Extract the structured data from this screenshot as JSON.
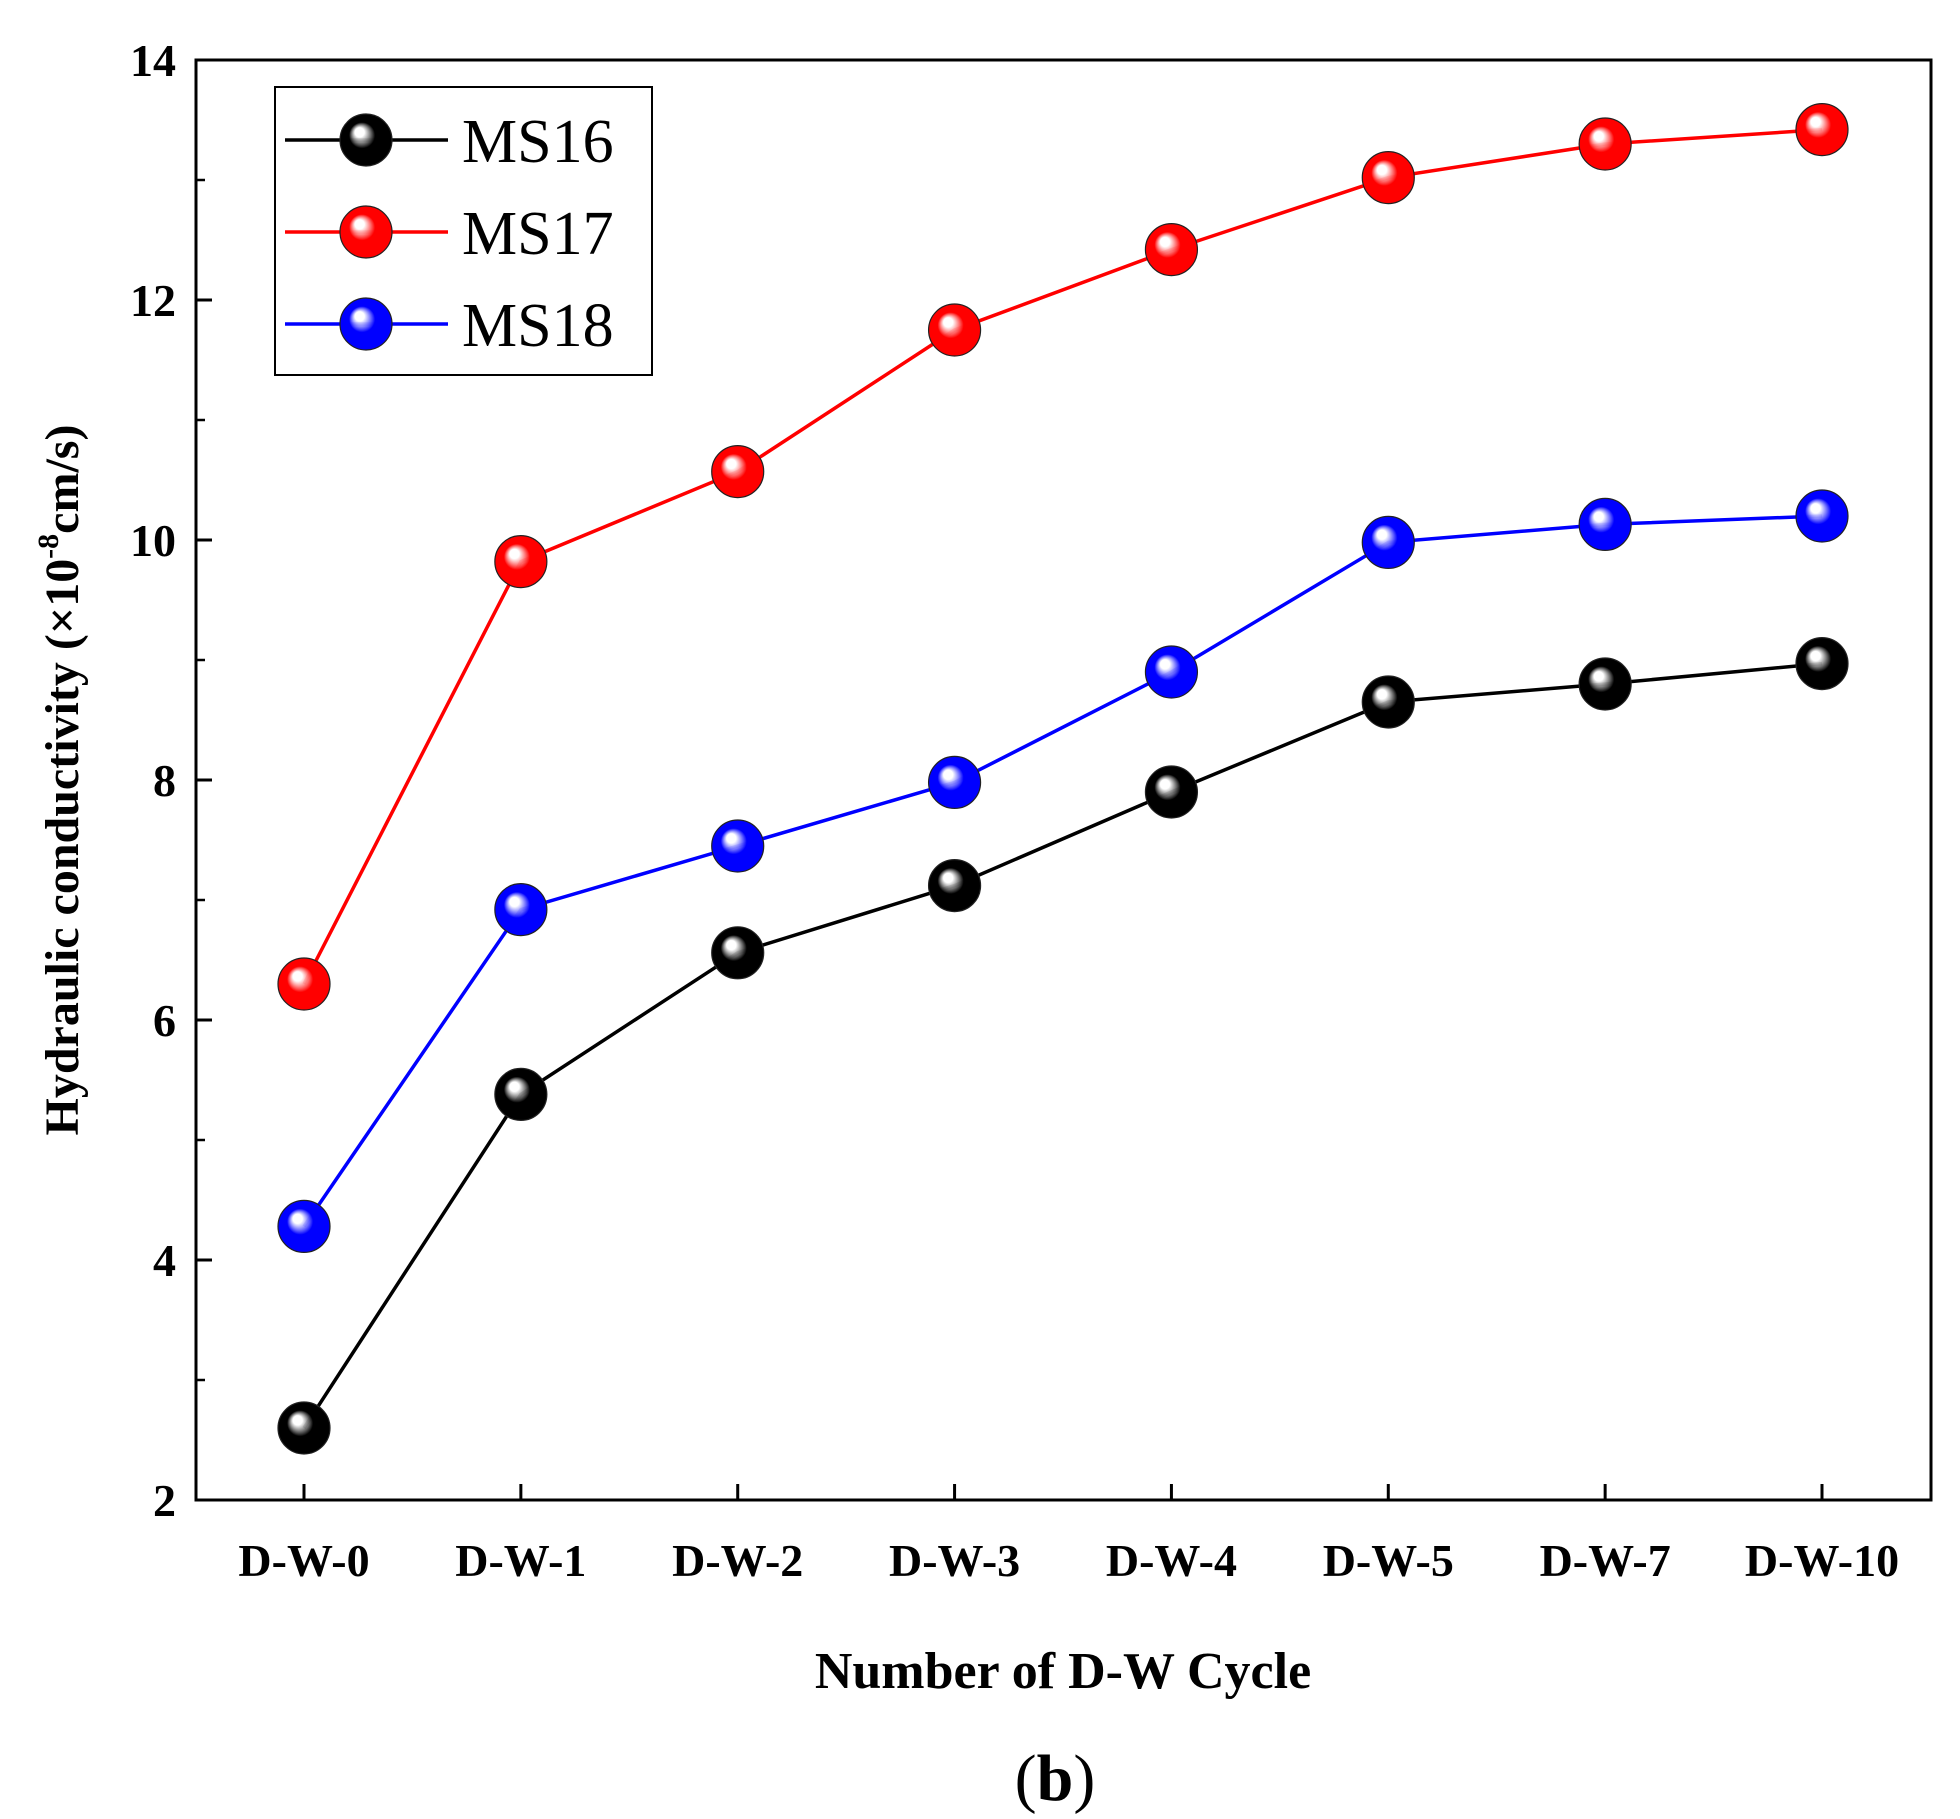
{
  "chart_data": {
    "type": "line",
    "title": "",
    "xlabel": "Number of D-W Cycle",
    "ylabel_main": "Hydraulic conductivity (×10",
    "ylabel_exp": "-8",
    "ylabel_unit": "cm/s)",
    "caption_open": "(",
    "caption_letter": "b",
    "caption_close": ")",
    "categories": [
      "D-W-0",
      "D-W-1",
      "D-W-2",
      "D-W-3",
      "D-W-4",
      "D-W-5",
      "D-W-7",
      "D-W-10"
    ],
    "ylim": [
      2,
      14
    ],
    "yticks": [
      2,
      4,
      6,
      8,
      10,
      12,
      14
    ],
    "legend_position": "top-left",
    "series": [
      {
        "name": "MS16",
        "color": "#000000",
        "values": [
          2.6,
          5.38,
          6.56,
          7.12,
          7.9,
          8.65,
          8.8,
          8.97
        ]
      },
      {
        "name": "MS17",
        "color": "#ff0000",
        "values": [
          6.3,
          9.82,
          10.57,
          11.75,
          12.42,
          13.02,
          13.3,
          13.42
        ]
      },
      {
        "name": "MS18",
        "color": "#0000ff",
        "values": [
          4.28,
          6.92,
          7.45,
          7.98,
          8.9,
          9.98,
          10.13,
          10.2
        ]
      }
    ]
  }
}
